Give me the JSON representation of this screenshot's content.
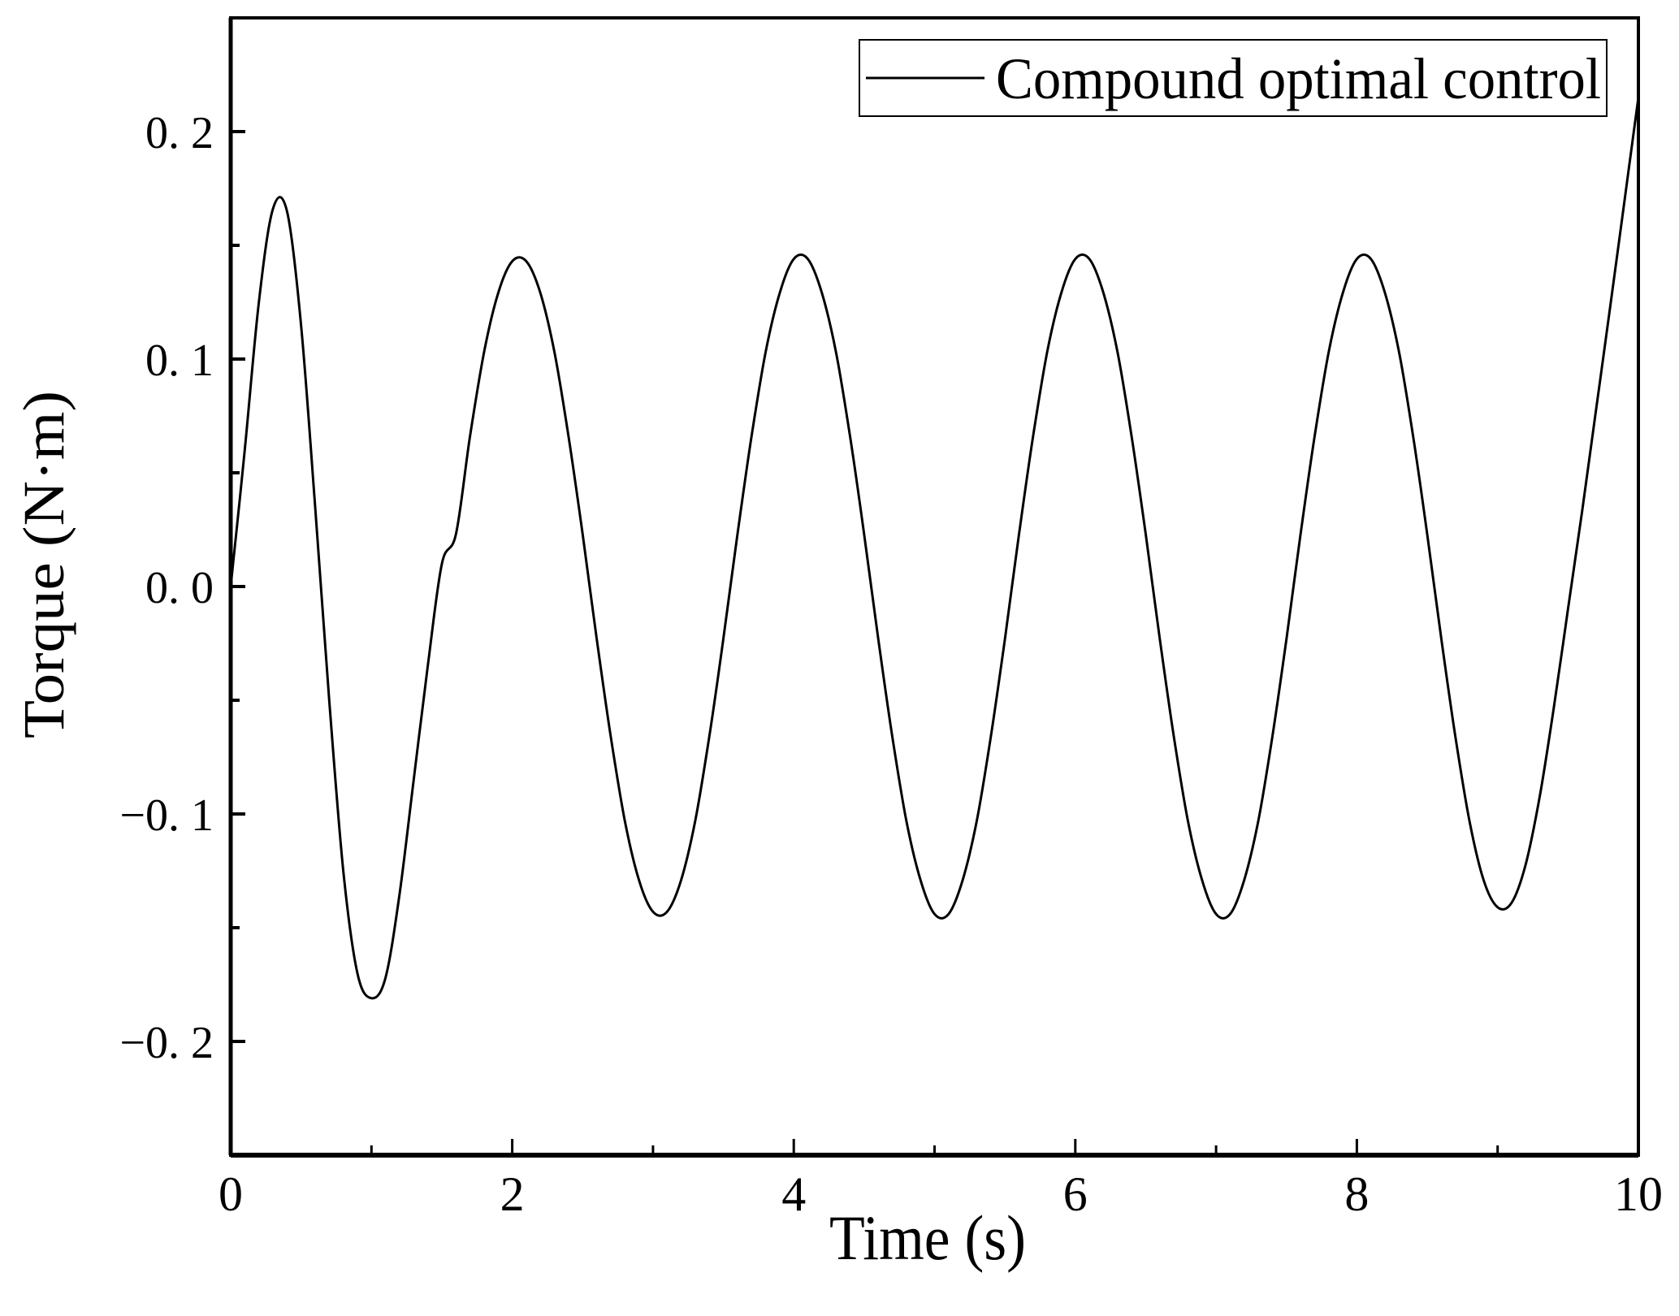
{
  "chart_data": {
    "type": "line",
    "title": "",
    "xlabel": "Time (s)",
    "ylabel": "Torque (N·m)",
    "xlim": [
      0,
      10
    ],
    "ylim": [
      -0.25,
      0.25
    ],
    "xticks": [
      0,
      2,
      4,
      6,
      8,
      10
    ],
    "xtick_labels": [
      "0",
      "2",
      "4",
      "6",
      "8",
      "10"
    ],
    "xminor_ticks": [
      1,
      3,
      5,
      7,
      9
    ],
    "yticks": [
      -0.2,
      -0.1,
      0.0,
      0.1,
      0.2
    ],
    "ytick_labels": [
      "−0. 2",
      "−0. 1",
      "0. 0",
      "0. 1",
      "0. 2"
    ],
    "yminor_ticks": [
      -0.15,
      -0.05,
      0.05,
      0.15
    ],
    "grid": false,
    "legend_position": "top-right",
    "line_color": "#000000",
    "series": [
      {
        "name": "Compound optimal control",
        "x": [
          0,
          0.1,
          0.2,
          0.3,
          0.4,
          0.5,
          0.6,
          0.7,
          0.8,
          0.9,
          1.0,
          1.1,
          1.2,
          1.3,
          1.4,
          1.5,
          1.6,
          1.7,
          1.8,
          1.9,
          2.0,
          2.1,
          2.2,
          2.3,
          2.4,
          2.5,
          2.6,
          2.7,
          2.8,
          2.9,
          3.0,
          3.1,
          3.2,
          3.3,
          3.4,
          3.5,
          3.6,
          3.7,
          3.8,
          3.9,
          4.0,
          4.1,
          4.2,
          4.3,
          4.4,
          4.5,
          4.6,
          4.7,
          4.8,
          4.9,
          5.0,
          5.1,
          5.2,
          5.3,
          5.4,
          5.5,
          5.6,
          5.7,
          5.8,
          5.9,
          6.0,
          6.1,
          6.2,
          6.3,
          6.4,
          6.5,
          6.6,
          6.7,
          6.8,
          6.9,
          7.0,
          7.1,
          7.2,
          7.3,
          7.4,
          7.5,
          7.6,
          7.7,
          7.8,
          7.9,
          8.0,
          8.1,
          8.2,
          8.3,
          8.4,
          8.5,
          8.6,
          8.7,
          8.8,
          8.9,
          9.0,
          9.1,
          9.2,
          9.3,
          9.4,
          9.5,
          9.6,
          9.7,
          9.8,
          9.9,
          10.0
        ],
        "y": [
          0,
          0.06,
          0.125,
          0.166,
          0.165,
          0.115,
          0.035,
          -0.05,
          -0.125,
          -0.17,
          -0.181,
          -0.172,
          -0.135,
          -0.085,
          -0.035,
          0.01,
          0.023,
          0.066,
          0.103,
          0.129,
          0.143,
          0.143,
          0.129,
          0.103,
          0.066,
          0.023,
          -0.023,
          -0.066,
          -0.103,
          -0.129,
          -0.143,
          -0.143,
          -0.129,
          -0.103,
          -0.066,
          -0.023,
          0.023,
          0.066,
          0.103,
          0.129,
          0.144,
          0.144,
          0.129,
          0.103,
          0.066,
          0.023,
          -0.023,
          -0.066,
          -0.103,
          -0.129,
          -0.144,
          -0.144,
          -0.129,
          -0.103,
          -0.066,
          -0.023,
          0.023,
          0.066,
          0.103,
          0.129,
          0.144,
          0.144,
          0.129,
          0.103,
          0.066,
          0.023,
          -0.023,
          -0.066,
          -0.103,
          -0.129,
          -0.144,
          -0.144,
          -0.129,
          -0.103,
          -0.066,
          -0.023,
          0.023,
          0.066,
          0.103,
          0.129,
          0.144,
          0.144,
          0.129,
          0.103,
          0.066,
          0.023,
          -0.023,
          -0.066,
          -0.103,
          -0.129,
          -0.141,
          -0.139,
          -0.122,
          -0.092,
          -0.053,
          -0.01,
          0.033,
          0.078,
          0.123,
          0.169,
          0.215
        ]
      }
    ]
  }
}
